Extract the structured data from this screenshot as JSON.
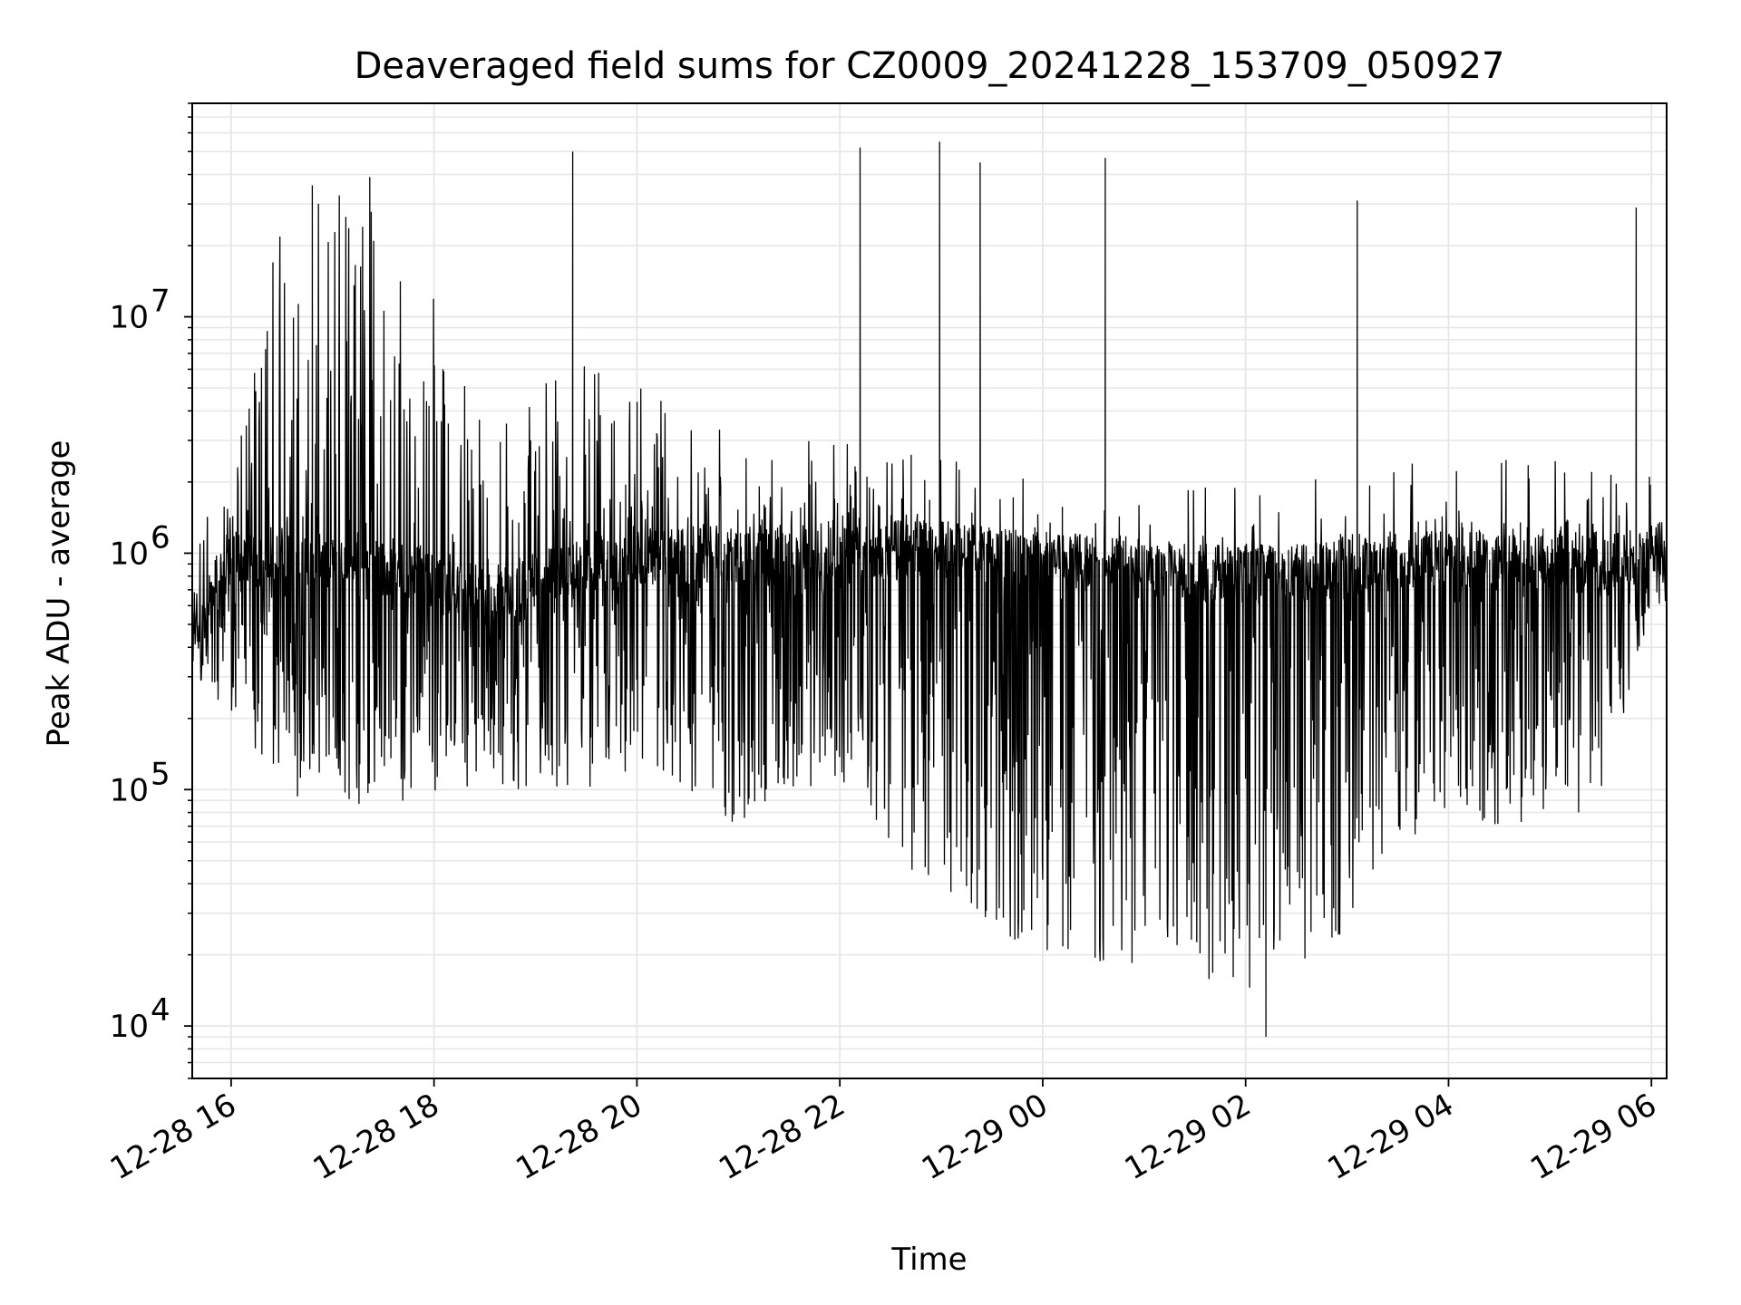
{
  "chart_data": {
    "type": "line",
    "title": "Deaveraged field sums for CZ0009_20241228_153709_050927",
    "xlabel": "Time",
    "ylabel": "Peak ADU - average",
    "yscale": "log",
    "ylim": [
      6000,
      80000000
    ],
    "xlim": [
      "2024-12-28 15:37",
      "2024-12-29 06:09"
    ],
    "grid": true,
    "line_color": "#000000",
    "grid_color": "#e6e6e6",
    "x_ticks": [
      "12-28 16",
      "12-28 18",
      "12-28 20",
      "12-28 22",
      "12-29 00",
      "12-29 02",
      "12-29 04",
      "12-29 06"
    ],
    "y_ticks": [
      {
        "value": 10000,
        "base": "10",
        "exp": "4"
      },
      {
        "value": 100000,
        "base": "10",
        "exp": "5"
      },
      {
        "value": 1000000,
        "base": "10",
        "exp": "6"
      },
      {
        "value": 10000000,
        "base": "10",
        "exp": "7"
      }
    ],
    "series": [
      {
        "values_note_description_removed": "",
        "x": [
          "2024-12-28 15:40",
          "2024-12-28 16:00",
          "2024-12-28 16:30",
          "2024-12-28 17:00",
          "2024-12-28 17:30",
          "2024-12-28 18:00",
          "2024-12-28 18:30",
          "2024-12-28 19:00",
          "2024-12-28 19:30",
          "2024-12-28 20:00",
          "2024-12-28 20:30",
          "2024-12-28 21:00",
          "2024-12-28 21:30",
          "2024-12-28 22:00",
          "2024-12-28 22:30",
          "2024-12-28 23:00",
          "2024-12-28 23:30",
          "2024-12-29 00:00",
          "2024-12-29 00:30",
          "2024-12-29 01:00",
          "2024-12-29 01:30",
          "2024-12-29 02:00",
          "2024-12-29 02:30",
          "2024-12-29 03:00",
          "2024-12-29 03:30",
          "2024-12-29 04:00",
          "2024-12-29 04:30",
          "2024-12-29 05:00",
          "2024-12-29 05:30",
          "2024-12-29 06:00"
        ],
        "baseline": [
          500000,
          900000,
          900000,
          900000,
          800000,
          700000,
          600000,
          700000,
          800000,
          900000,
          900000,
          900000,
          950000,
          950000,
          950000,
          950000,
          900000,
          850000,
          850000,
          800000,
          750000,
          750000,
          750000,
          800000,
          850000,
          850000,
          850000,
          850000,
          800000,
          950000
        ],
        "upper": [
          800000,
          2000000,
          20000000,
          20000000,
          15000000,
          8000000,
          2000000,
          3000000,
          5000000,
          3000000,
          2500000,
          2000000,
          1500000,
          3000000,
          1500000,
          1500000,
          1300000,
          1200000,
          1200000,
          1100000,
          1100000,
          1100000,
          1100000,
          1300000,
          1400000,
          1400000,
          1400000,
          1400000,
          1400000,
          1200000
        ],
        "lower": [
          300000,
          200000,
          100000,
          80000,
          80000,
          90000,
          100000,
          100000,
          100000,
          120000,
          90000,
          70000,
          100000,
          100000,
          60000,
          30000,
          25000,
          20000,
          18000,
          17000,
          15000,
          13000,
          15000,
          25000,
          60000,
          60000,
          70000,
          70000,
          80000,
          600000
        ],
        "min_point": {
          "x": "2024-12-29 02:12",
          "y": 9000
        },
        "spikes": [
          {
            "x": "2024-12-28 16:48",
            "y": 36000000
          },
          {
            "x": "2024-12-28 17:22",
            "y": 39000000
          },
          {
            "x": "2024-12-28 19:22",
            "y": 50000000
          },
          {
            "x": "2024-12-28 22:12",
            "y": 52000000
          },
          {
            "x": "2024-12-28 22:59",
            "y": 55000000
          },
          {
            "x": "2024-12-28 23:23",
            "y": 45000000
          },
          {
            "x": "2024-12-29 00:37",
            "y": 47000000
          },
          {
            "x": "2024-12-29 03:06",
            "y": 31000000
          },
          {
            "x": "2024-12-29 05:51",
            "y": 29000000
          }
        ]
      }
    ]
  }
}
